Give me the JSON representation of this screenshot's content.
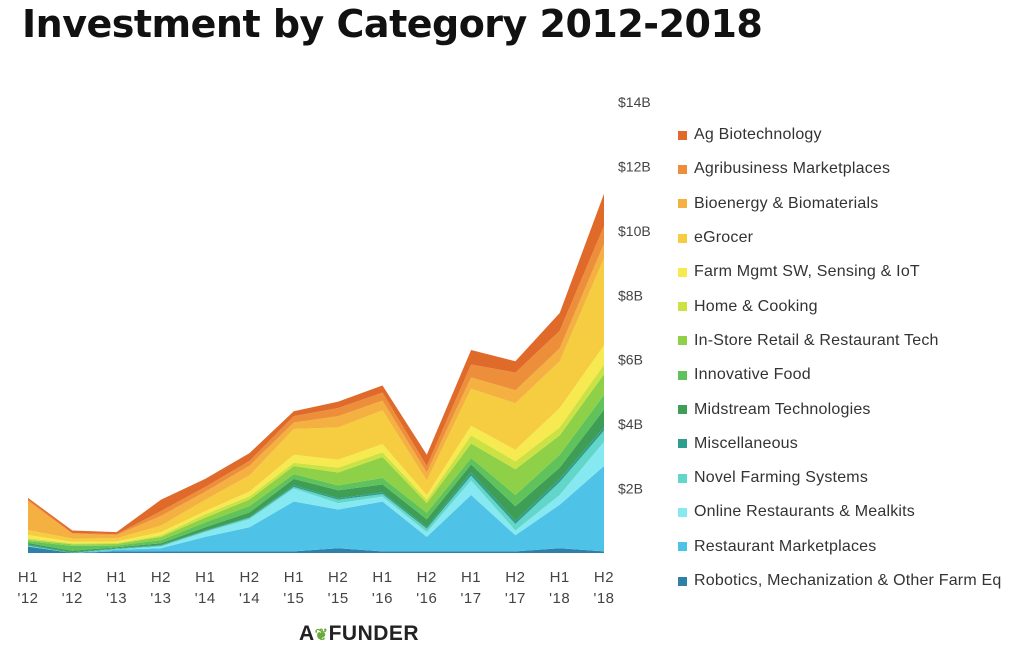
{
  "page": {
    "title": "Investment by Category 2012-2018",
    "logo_text": "AgFUNDER"
  },
  "chart_data": {
    "type": "area",
    "stacked": true,
    "title": "Investment by Category 2012-2018",
    "xlabel": "",
    "ylabel": "",
    "x_ticks": [
      [
        "H1",
        "'12"
      ],
      [
        "H2",
        "'12"
      ],
      [
        "H1",
        "'13"
      ],
      [
        "H2",
        "'13"
      ],
      [
        "H1",
        "'14"
      ],
      [
        "H2",
        "'14"
      ],
      [
        "H1",
        "'15"
      ],
      [
        "H2",
        "'15"
      ],
      [
        "H1",
        "'16"
      ],
      [
        "H2",
        "'16"
      ],
      [
        "H1",
        "'17"
      ],
      [
        "H2",
        "'17"
      ],
      [
        "H1",
        "'18"
      ],
      [
        "H2",
        "'18"
      ]
    ],
    "y_ticks": [
      "$2B",
      "$4B",
      "$6B",
      "$8B",
      "$10B",
      "$12B",
      "$14B"
    ],
    "y_tick_values": [
      2,
      4,
      6,
      8,
      10,
      12,
      14
    ],
    "ylim": [
      0,
      14
    ],
    "y_unit": "$B",
    "y_axis_position": "right",
    "grid": false,
    "legend_position": "right",
    "series": [
      {
        "name": "Robotics, Mechanization & Other Farm Eq",
        "color": "#2f7fa8",
        "values": [
          0.2,
          0.0,
          0.05,
          0.05,
          0.05,
          0.05,
          0.05,
          0.15,
          0.05,
          0.05,
          0.05,
          0.05,
          0.15,
          0.05
        ]
      },
      {
        "name": "Restaurant Marketplaces",
        "color": "#4fc2e8",
        "values": [
          0.0,
          0.0,
          0.05,
          0.1,
          0.45,
          0.75,
          1.55,
          1.2,
          1.55,
          0.45,
          1.75,
          0.5,
          1.35,
          2.65
        ]
      },
      {
        "name": "Online Restaurants & Mealkits",
        "color": "#86e8f0",
        "values": [
          0.0,
          0.0,
          0.0,
          0.05,
          0.15,
          0.25,
          0.4,
          0.2,
          0.15,
          0.15,
          0.45,
          0.15,
          0.3,
          0.75
        ]
      },
      {
        "name": "Novel Farming Systems",
        "color": "#62d6c8",
        "values": [
          0.03,
          0.0,
          0.03,
          0.03,
          0.03,
          0.04,
          0.05,
          0.1,
          0.08,
          0.1,
          0.15,
          0.2,
          0.4,
          0.35
        ]
      },
      {
        "name": "Miscellaneous",
        "color": "#2f9e8e",
        "values": [
          0.03,
          0.02,
          0.02,
          0.02,
          0.02,
          0.02,
          0.05,
          0.05,
          0.05,
          0.05,
          0.1,
          0.1,
          0.1,
          0.1
        ]
      },
      {
        "name": "Midstream Technologies",
        "color": "#3f9e55",
        "values": [
          0.05,
          0.05,
          0.03,
          0.05,
          0.1,
          0.15,
          0.2,
          0.25,
          0.25,
          0.25,
          0.25,
          0.45,
          0.35,
          0.55
        ]
      },
      {
        "name": "Innovative Food",
        "color": "#5fc25a",
        "values": [
          0.05,
          0.15,
          0.05,
          0.1,
          0.15,
          0.2,
          0.15,
          0.15,
          0.2,
          0.2,
          0.2,
          0.35,
          0.4,
          0.45
        ]
      },
      {
        "name": "In-Store Retail & Restaurant Tech",
        "color": "#8ed048",
        "values": [
          0.05,
          0.05,
          0.05,
          0.1,
          0.15,
          0.2,
          0.25,
          0.4,
          0.65,
          0.3,
          0.45,
          0.8,
          0.6,
          0.65
        ]
      },
      {
        "name": "Home & Cooking",
        "color": "#cce244",
        "values": [
          0.05,
          0.03,
          0.03,
          0.05,
          0.1,
          0.1,
          0.1,
          0.15,
          0.15,
          0.1,
          0.25,
          0.25,
          0.25,
          0.3
        ]
      },
      {
        "name": "Farm Mgmt SW, Sensing & IoT",
        "color": "#f6ea50",
        "values": [
          0.1,
          0.05,
          0.05,
          0.1,
          0.1,
          0.15,
          0.25,
          0.25,
          0.25,
          0.15,
          0.3,
          0.35,
          0.6,
          0.6
        ]
      },
      {
        "name": "eGrocer",
        "color": "#f6cc40",
        "values": [
          0.15,
          0.1,
          0.1,
          0.2,
          0.35,
          0.5,
          0.8,
          1.0,
          1.05,
          0.45,
          1.15,
          1.45,
          1.45,
          2.7
        ]
      },
      {
        "name": "Bioenergy & Biomaterials",
        "color": "#f4b040",
        "values": [
          0.9,
          0.15,
          0.1,
          0.3,
          0.25,
          0.3,
          0.2,
          0.35,
          0.3,
          0.25,
          0.35,
          0.4,
          0.4,
          0.45
        ]
      },
      {
        "name": "Agribusiness Marketplaces",
        "color": "#ec8e3a",
        "values": [
          0.05,
          0.02,
          0.02,
          0.15,
          0.15,
          0.15,
          0.2,
          0.25,
          0.25,
          0.2,
          0.4,
          0.55,
          0.55,
          0.55
        ]
      },
      {
        "name": "Ag Biotechnology",
        "color": "#e06a2a",
        "values": [
          0.05,
          0.08,
          0.07,
          0.35,
          0.25,
          0.24,
          0.15,
          0.2,
          0.22,
          0.35,
          0.45,
          0.35,
          0.55,
          1.0
        ]
      }
    ]
  }
}
